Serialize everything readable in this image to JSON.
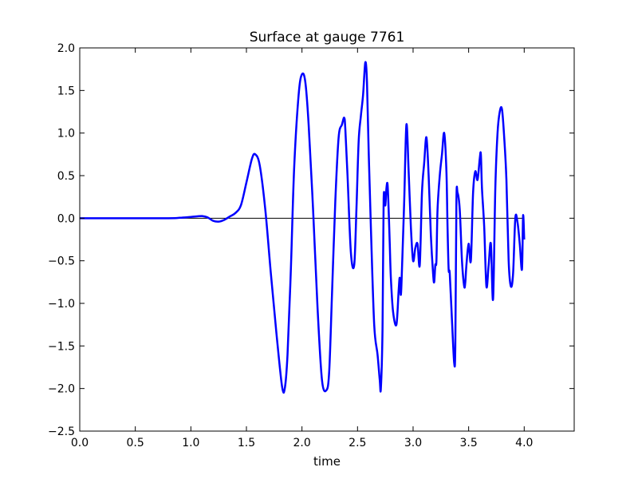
{
  "chart_data": {
    "type": "line",
    "title": "Surface at gauge 7761",
    "xlabel": "time",
    "ylabel": "",
    "xlim": [
      0.0,
      4.45
    ],
    "ylim": [
      -2.5,
      2.0
    ],
    "xticks": [
      "0.0",
      "0.5",
      "1.0",
      "1.5",
      "2.0",
      "2.5",
      "3.0",
      "3.5",
      "4.0"
    ],
    "yticks": [
      "−2.5",
      "−2.0",
      "−1.5",
      "−1.0",
      "−0.5",
      "0.0",
      "0.5",
      "1.0",
      "1.5",
      "2.0"
    ],
    "grid": false,
    "reference_line": 0.0,
    "series": [
      {
        "color": "#0000ff",
        "x": [
          0.0,
          0.8,
          0.9,
          1.0,
          1.1,
          1.15,
          1.2,
          1.25,
          1.3,
          1.35,
          1.4,
          1.45,
          1.5,
          1.55,
          1.58,
          1.62,
          1.67,
          1.72,
          1.77,
          1.82,
          1.845,
          1.87,
          1.9,
          1.93,
          1.97,
          2.0,
          2.03,
          2.06,
          2.1,
          2.14,
          2.18,
          2.22,
          2.245,
          2.27,
          2.3,
          2.33,
          2.36,
          2.38,
          2.39,
          2.41,
          2.44,
          2.47,
          2.49,
          2.51,
          2.53,
          2.55,
          2.57,
          2.585,
          2.6,
          2.62,
          2.65,
          2.68,
          2.7,
          2.71,
          2.725,
          2.735,
          2.75,
          2.76,
          2.77,
          2.78,
          2.79,
          2.8,
          2.82,
          2.85,
          2.87,
          2.88,
          2.89,
          2.9,
          2.92,
          2.94,
          2.96,
          2.98,
          3.0,
          3.02,
          3.04,
          3.06,
          3.08,
          3.1,
          3.12,
          3.14,
          3.16,
          3.18,
          3.19,
          3.2,
          3.21,
          3.22,
          3.24,
          3.26,
          3.28,
          3.3,
          3.31,
          3.32,
          3.33,
          3.35,
          3.37,
          3.38,
          3.39,
          3.4,
          3.42,
          3.44,
          3.46,
          3.47,
          3.48,
          3.5,
          3.52,
          3.54,
          3.56,
          3.58,
          3.6,
          3.61,
          3.62,
          3.64,
          3.66,
          3.68,
          3.7,
          3.72,
          3.74,
          3.76,
          3.78,
          3.8,
          3.82,
          3.84,
          3.86,
          3.88,
          3.9,
          3.92,
          3.94,
          3.96,
          3.98,
          3.99,
          4.0
        ],
        "y": [
          0.0,
          0.0,
          0.005,
          0.015,
          0.025,
          0.01,
          -0.03,
          -0.04,
          -0.02,
          0.02,
          0.06,
          0.15,
          0.42,
          0.7,
          0.75,
          0.62,
          0.1,
          -0.65,
          -1.35,
          -1.97,
          -2.0,
          -1.6,
          -0.6,
          0.6,
          1.45,
          1.69,
          1.6,
          1.1,
          0.1,
          -1.05,
          -1.9,
          -2.02,
          -1.8,
          -0.9,
          0.2,
          0.95,
          1.1,
          1.18,
          1.05,
          0.5,
          -0.4,
          -0.55,
          0.1,
          0.9,
          1.2,
          1.45,
          1.83,
          1.6,
          0.8,
          -0.1,
          -1.25,
          -1.6,
          -1.9,
          -2.0,
          -1.3,
          0.22,
          0.15,
          0.35,
          0.4,
          0.1,
          -0.3,
          -0.7,
          -1.1,
          -1.25,
          -0.85,
          -0.7,
          -0.9,
          -0.6,
          0.2,
          1.1,
          0.55,
          -0.1,
          -0.5,
          -0.35,
          -0.3,
          -0.55,
          0.3,
          0.65,
          0.95,
          0.5,
          -0.2,
          -0.65,
          -0.75,
          -0.55,
          -0.5,
          0.1,
          0.5,
          0.75,
          1.0,
          0.55,
          -0.1,
          -0.6,
          -0.65,
          -1.2,
          -1.7,
          -1.5,
          0.2,
          0.3,
          0.1,
          -0.5,
          -0.8,
          -0.75,
          -0.55,
          -0.3,
          -0.5,
          0.3,
          0.55,
          0.45,
          0.7,
          0.75,
          0.35,
          -0.1,
          -0.8,
          -0.55,
          -0.3,
          -0.95,
          0.35,
          1.0,
          1.25,
          1.28,
          0.95,
          0.45,
          -0.5,
          -0.8,
          -0.65,
          0.0,
          -0.05,
          -0.3,
          -0.6,
          0.03,
          -0.25
        ]
      }
    ]
  }
}
